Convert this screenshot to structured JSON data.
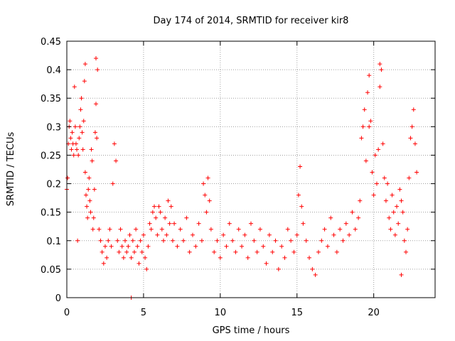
{
  "chart_data": {
    "type": "scatter",
    "title": "Day 174 of 2014, SRMTID for receiver kir8",
    "xlabel": "GPS time / hours",
    "ylabel": "SRMTID / TECUs",
    "xlim": [
      0,
      24
    ],
    "ylim": [
      0,
      0.45
    ],
    "xticks": [
      0,
      5,
      10,
      15,
      20
    ],
    "xtick_labels": [
      "0",
      "5",
      "10",
      "15",
      "20"
    ],
    "yticks": [
      0,
      0.05,
      0.1,
      0.15,
      0.2,
      0.25,
      0.3,
      0.35,
      0.4,
      0.45
    ],
    "ytick_labels": [
      "0",
      "0.05",
      "0.1",
      "0.15",
      "0.2",
      "0.25",
      "0.3",
      "0.35",
      "0.4",
      "0.45"
    ],
    "grid": true,
    "marker": "+",
    "series": [
      {
        "name": "SRMTID",
        "color": "#ff0000",
        "x": [
          0.0,
          0.05,
          0.1,
          0.15,
          0.2,
          0.25,
          0.3,
          0.35,
          0.4,
          0.45,
          0.5,
          0.55,
          0.6,
          0.65,
          0.7,
          0.75,
          0.8,
          0.85,
          0.9,
          0.95,
          1.0,
          1.05,
          1.1,
          1.15,
          1.2,
          1.25,
          1.3,
          1.35,
          1.4,
          1.45,
          1.5,
          1.55,
          1.6,
          1.65,
          1.7,
          1.75,
          1.8,
          1.85,
          1.9,
          1.95,
          2.0,
          2.1,
          2.2,
          2.3,
          2.4,
          2.5,
          2.6,
          2.7,
          2.8,
          2.9,
          3.0,
          3.1,
          3.2,
          3.3,
          3.4,
          3.5,
          3.6,
          3.7,
          3.8,
          3.9,
          4.0,
          4.1,
          4.2,
          4.3,
          4.4,
          4.5,
          4.6,
          4.7,
          4.8,
          4.9,
          5.0,
          5.1,
          5.2,
          5.3,
          5.4,
          5.5,
          5.6,
          5.7,
          5.8,
          5.9,
          6.0,
          6.1,
          6.2,
          6.3,
          6.4,
          6.5,
          6.6,
          6.7,
          6.8,
          6.9,
          7.0,
          7.2,
          7.4,
          7.6,
          7.8,
          8.0,
          8.2,
          8.4,
          8.6,
          8.8,
          8.9,
          9.0,
          9.1,
          9.2,
          9.3,
          9.4,
          9.6,
          9.8,
          10.0,
          10.2,
          10.4,
          10.6,
          10.8,
          11.0,
          11.2,
          11.4,
          11.6,
          11.8,
          12.0,
          12.2,
          12.4,
          12.6,
          12.8,
          13.0,
          13.2,
          13.4,
          13.6,
          13.8,
          14.0,
          14.2,
          14.4,
          14.6,
          14.8,
          15.0,
          15.1,
          15.2,
          15.3,
          15.4,
          15.6,
          15.8,
          16.0,
          16.2,
          16.4,
          16.6,
          16.8,
          17.0,
          17.2,
          17.4,
          17.6,
          17.8,
          18.0,
          18.2,
          18.4,
          18.6,
          18.8,
          19.0,
          19.1,
          19.2,
          19.3,
          19.4,
          19.5,
          19.6,
          19.7,
          19.8,
          19.9,
          20.0,
          20.1,
          20.2,
          20.3,
          20.4,
          20.5,
          20.6,
          20.7,
          20.8,
          20.9,
          21.0,
          21.1,
          21.2,
          21.3,
          21.4,
          21.5,
          21.6,
          21.7,
          21.8,
          21.9,
          22.0,
          22.1,
          22.2,
          22.3,
          22.4,
          22.5,
          22.6,
          22.7,
          22.8,
          4.2,
          21.8,
          1.2,
          1.9,
          20.4,
          19.7
        ],
        "y": [
          0.19,
          0.21,
          0.27,
          0.3,
          0.31,
          0.28,
          0.26,
          0.29,
          0.27,
          0.25,
          0.37,
          0.3,
          0.27,
          0.26,
          0.1,
          0.25,
          0.28,
          0.3,
          0.33,
          0.35,
          0.29,
          0.26,
          0.31,
          0.38,
          0.22,
          0.18,
          0.16,
          0.14,
          0.19,
          0.21,
          0.17,
          0.15,
          0.26,
          0.24,
          0.12,
          0.14,
          0.19,
          0.29,
          0.34,
          0.28,
          0.4,
          0.12,
          0.1,
          0.08,
          0.06,
          0.09,
          0.07,
          0.1,
          0.12,
          0.09,
          0.2,
          0.27,
          0.24,
          0.1,
          0.08,
          0.12,
          0.09,
          0.07,
          0.1,
          0.08,
          0.09,
          0.11,
          0.07,
          0.1,
          0.08,
          0.12,
          0.09,
          0.06,
          0.1,
          0.08,
          0.11,
          0.07,
          0.05,
          0.09,
          0.13,
          0.12,
          0.15,
          0.16,
          0.14,
          0.11,
          0.16,
          0.15,
          0.12,
          0.1,
          0.14,
          0.11,
          0.17,
          0.13,
          0.16,
          0.1,
          0.13,
          0.09,
          0.12,
          0.1,
          0.14,
          0.08,
          0.11,
          0.09,
          0.13,
          0.1,
          0.2,
          0.18,
          0.15,
          0.21,
          0.17,
          0.12,
          0.08,
          0.1,
          0.07,
          0.11,
          0.09,
          0.13,
          0.1,
          0.08,
          0.12,
          0.09,
          0.11,
          0.07,
          0.13,
          0.1,
          0.08,
          0.12,
          0.09,
          0.06,
          0.11,
          0.08,
          0.1,
          0.05,
          0.09,
          0.07,
          0.12,
          0.1,
          0.08,
          0.11,
          0.18,
          0.23,
          0.16,
          0.13,
          0.1,
          0.07,
          0.05,
          0.04,
          0.08,
          0.1,
          0.12,
          0.09,
          0.14,
          0.11,
          0.08,
          0.12,
          0.1,
          0.13,
          0.11,
          0.15,
          0.12,
          0.14,
          0.17,
          0.28,
          0.3,
          0.33,
          0.24,
          0.36,
          0.39,
          0.31,
          0.22,
          0.18,
          0.25,
          0.2,
          0.26,
          0.37,
          0.4,
          0.27,
          0.21,
          0.17,
          0.2,
          0.14,
          0.12,
          0.18,
          0.15,
          0.11,
          0.16,
          0.13,
          0.19,
          0.17,
          0.15,
          0.1,
          0.08,
          0.12,
          0.21,
          0.28,
          0.3,
          0.33,
          0.27,
          0.22,
          0.0,
          0.04,
          0.41,
          0.42,
          0.41,
          0.3
        ]
      }
    ]
  }
}
